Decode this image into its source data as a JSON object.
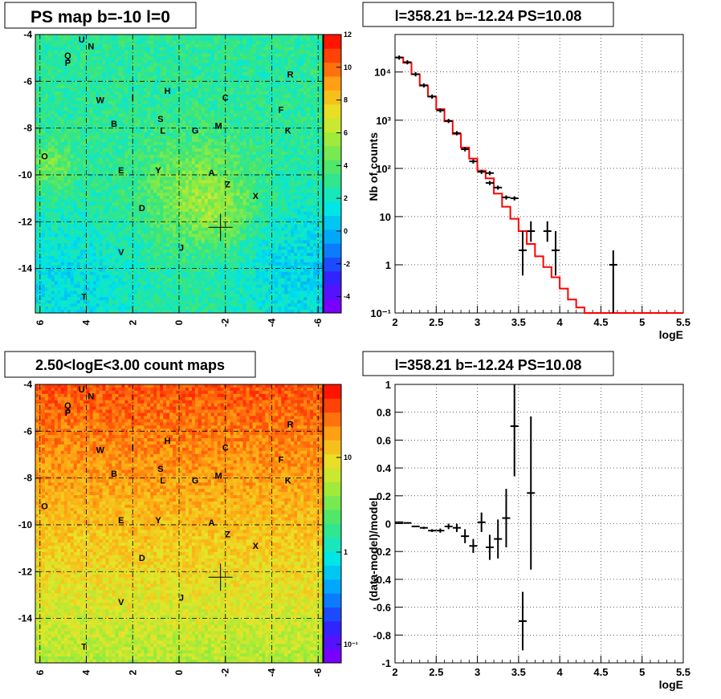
{
  "panels": {
    "map1_title": "PS map b=-10 l=0",
    "map2_title": "2.50<logE<3.00 count maps",
    "spec_title": "l=358.21 b=-12.24 PS=10.08",
    "resid_title": "l=358.21 b=-12.24 PS=10.08"
  },
  "colors": {
    "model_line": "#ff0000",
    "data_points": "#000000",
    "grid": "#000000"
  },
  "chart_data": [
    {
      "type": "heatmap",
      "title": "PS map b=-10 l=0",
      "x_ticks": [
        "6",
        "4",
        "2",
        "0",
        "-2",
        "-4",
        "-6"
      ],
      "y_ticks": [
        "-4",
        "-6",
        "-8",
        "-10",
        "-12",
        "-14"
      ],
      "xlim": [
        6.2,
        -6.2
      ],
      "ylim": [
        -15.9,
        -4
      ],
      "colorbar_ticks": [
        "12",
        "10",
        "8",
        "6",
        "4",
        "2",
        "0",
        "-2",
        "-4"
      ],
      "colorbar_range": [
        -5,
        12
      ],
      "grid": true,
      "labels": [
        {
          "t": "U",
          "x": 4.2,
          "y": -4.2
        },
        {
          "t": "N",
          "x": 3.8,
          "y": -4.5
        },
        {
          "t": "Q",
          "x": 4.8,
          "y": -4.9
        },
        {
          "t": "P",
          "x": 4.8,
          "y": -5.2
        },
        {
          "t": "R",
          "x": -4.8,
          "y": -5.7
        },
        {
          "t": "W",
          "x": 3.4,
          "y": -6.8
        },
        {
          "t": "I",
          "x": 2.0,
          "y": -6.7
        },
        {
          "t": "H",
          "x": 0.5,
          "y": -6.4
        },
        {
          "t": "C",
          "x": -2.0,
          "y": -6.7
        },
        {
          "t": "F",
          "x": -4.4,
          "y": -7.2
        },
        {
          "t": "B",
          "x": 2.8,
          "y": -7.8
        },
        {
          "t": "S",
          "x": 0.8,
          "y": -7.6
        },
        {
          "t": "L",
          "x": 0.7,
          "y": -8.1
        },
        {
          "t": "G",
          "x": -0.7,
          "y": -8.1
        },
        {
          "t": "M",
          "x": -1.7,
          "y": -7.9
        },
        {
          "t": "K",
          "x": -4.7,
          "y": -8.1
        },
        {
          "t": "O",
          "x": 5.8,
          "y": -9.2
        },
        {
          "t": "E",
          "x": 2.5,
          "y": -9.8
        },
        {
          "t": "Y",
          "x": 0.9,
          "y": -9.8
        },
        {
          "t": "A",
          "x": -1.4,
          "y": -9.9
        },
        {
          "t": "Z",
          "x": -2.1,
          "y": -10.4
        },
        {
          "t": "X",
          "x": -3.3,
          "y": -10.9
        },
        {
          "t": "D",
          "x": 1.6,
          "y": -11.4
        },
        {
          "t": "J",
          "x": -0.1,
          "y": -13.1
        },
        {
          "t": "V",
          "x": 2.5,
          "y": -13.3
        },
        {
          "t": "T",
          "x": 4.1,
          "y": -15.2
        }
      ],
      "marker": {
        "l": -1.79,
        "b": -12.24
      }
    },
    {
      "type": "heatmap",
      "title": "2.50<logE<3.00 count maps",
      "x_ticks": [
        "6",
        "4",
        "2",
        "0",
        "-2",
        "-4",
        "-6"
      ],
      "y_ticks": [
        "-4",
        "-6",
        "-8",
        "-10",
        "-12",
        "-14"
      ],
      "xlim": [
        6.2,
        -6.2
      ],
      "ylim": [
        -15.9,
        -4
      ],
      "colorbar_ticks": [
        "10",
        "1",
        "10⁻¹"
      ],
      "colorbar_log": true,
      "grid": true,
      "marker": {
        "l": -1.79,
        "b": -12.24
      }
    },
    {
      "type": "line",
      "title": "l=358.21 b=-12.24 PS=10.08",
      "xlabel": "logE",
      "ylabel": "Nb of counts",
      "xlim": [
        2,
        5.5
      ],
      "ylim": [
        0.1,
        60000
      ],
      "log_y": true,
      "grid": true,
      "x_ticks": [
        "2",
        "2.5",
        "3",
        "3.5",
        "4",
        "4.5",
        "5",
        "5.5"
      ],
      "y_ticks": [
        {
          "v": 0.1,
          "t": "10⁻¹"
        },
        {
          "v": 1,
          "t": "1"
        },
        {
          "v": 10,
          "t": "10"
        },
        {
          "v": 100,
          "t": "10²"
        },
        {
          "v": 1000,
          "t": "10³"
        },
        {
          "v": 10000,
          "t": "10⁴"
        }
      ],
      "model_edges": [
        2.0,
        2.1,
        2.2,
        2.3,
        2.4,
        2.5,
        2.6,
        2.7,
        2.8,
        2.9,
        3.0,
        3.1,
        3.2,
        3.3,
        3.4,
        3.5,
        3.6,
        3.7,
        3.8,
        3.9,
        4.0,
        4.1,
        4.2,
        4.3,
        4.4,
        4.5,
        4.6,
        4.7,
        4.8,
        4.9,
        5.0,
        5.1,
        5.2,
        5.3,
        5.4,
        5.5
      ],
      "model_values": [
        20000,
        15500,
        9000,
        5200,
        3100,
        1700,
        950,
        520,
        270,
        160,
        90,
        62,
        30,
        16,
        9,
        5,
        2.7,
        1.5,
        0.9,
        0.55,
        0.32,
        0.19,
        0.13,
        0.1,
        0.1,
        0.1,
        0.1,
        0.1,
        0.1,
        0.1,
        0.1,
        0.1,
        0.1,
        0.1,
        0.1
      ],
      "data_points": [
        {
          "x": 2.05,
          "y": 20000
        },
        {
          "x": 2.15,
          "y": 16000
        },
        {
          "x": 2.25,
          "y": 9000
        },
        {
          "x": 2.35,
          "y": 5300
        },
        {
          "x": 2.45,
          "y": 3100
        },
        {
          "x": 2.55,
          "y": 1600
        },
        {
          "x": 2.65,
          "y": 970
        },
        {
          "x": 2.75,
          "y": 540
        },
        {
          "x": 2.85,
          "y": 250
        },
        {
          "x": 2.95,
          "y": 140
        },
        {
          "x": 3.05,
          "y": 85
        },
        {
          "x": 3.15,
          "y": 50
        },
        {
          "x": 3.15,
          "y": 80
        },
        {
          "x": 3.25,
          "y": 40
        },
        {
          "x": 3.35,
          "y": 25
        },
        {
          "x": 3.45,
          "y": 24
        },
        {
          "x": 3.55,
          "y": 2,
          "lo": 0.6,
          "hi": 5
        },
        {
          "x": 3.65,
          "y": 5,
          "lo": 3,
          "hi": 8
        },
        {
          "x": 3.85,
          "y": 5,
          "lo": 3,
          "hi": 8
        },
        {
          "x": 3.95,
          "y": 2,
          "lo": 0.6,
          "hi": 5
        },
        {
          "x": 4.65,
          "y": 1,
          "lo": 0.1,
          "hi": 2
        }
      ]
    },
    {
      "type": "scatter",
      "title": "l=358.21 b=-12.24 PS=10.08",
      "xlabel": "logE",
      "ylabel": "(data-model)/model",
      "xlim": [
        2,
        5.5
      ],
      "ylim": [
        -1,
        1
      ],
      "grid": true,
      "x_ticks": [
        "2",
        "2.5",
        "3",
        "3.5",
        "4",
        "4.5",
        "5",
        "5.5"
      ],
      "y_ticks": [
        "1",
        "0.8",
        "0.6",
        "0.4",
        "0.2",
        "0",
        "-0.2",
        "-0.4",
        "-0.6",
        "-0.8",
        "-1"
      ],
      "points": [
        {
          "x": 2.05,
          "y": 0.01,
          "e": 0.005
        },
        {
          "x": 2.15,
          "y": 0.005,
          "e": 0.005
        },
        {
          "x": 2.25,
          "y": -0.02,
          "e": 0.006
        },
        {
          "x": 2.35,
          "y": -0.03,
          "e": 0.008
        },
        {
          "x": 2.45,
          "y": -0.05,
          "e": 0.01
        },
        {
          "x": 2.55,
          "y": -0.05,
          "e": 0.015
        },
        {
          "x": 2.65,
          "y": -0.02,
          "e": 0.02
        },
        {
          "x": 2.75,
          "y": -0.03,
          "e": 0.03
        },
        {
          "x": 2.85,
          "y": -0.09,
          "e": 0.05
        },
        {
          "x": 2.95,
          "y": -0.16,
          "e": 0.05
        },
        {
          "x": 3.05,
          "y": 0.01,
          "e": 0.07
        },
        {
          "x": 3.15,
          "y": -0.17,
          "e": 0.09
        },
        {
          "x": 3.25,
          "y": -0.11,
          "e": 0.14
        },
        {
          "x": 3.35,
          "y": 0.04,
          "e": 0.21
        },
        {
          "x": 3.45,
          "y": 0.7,
          "e": 0.36
        },
        {
          "x": 3.55,
          "y": -0.7,
          "e": 0.21
        },
        {
          "x": 3.65,
          "y": 0.22,
          "e": 0.55
        }
      ]
    }
  ]
}
